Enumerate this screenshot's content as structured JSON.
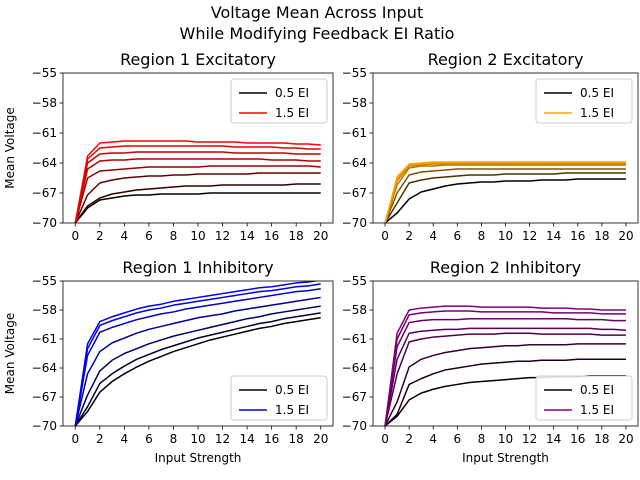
{
  "suptitle_line1": "Voltage Mean Across Input",
  "suptitle_line2": "While Modifying Feedback EI Ratio",
  "chart_data": [
    {
      "type": "line",
      "title": "Region 1 Excitatory",
      "xlabel": "",
      "ylabel": "Mean Voltage",
      "xlim": [
        0,
        20
      ],
      "ylim": [
        -70,
        -55
      ],
      "xticks": [
        0,
        2,
        4,
        6,
        8,
        10,
        12,
        14,
        16,
        18,
        20
      ],
      "yticks": [
        -70,
        -67,
        -64,
        -61,
        -58,
        -55
      ],
      "legend": [
        "0.5 EI",
        "1.5 EI"
      ],
      "legend_position": "upper right",
      "low_color": "#000000",
      "high_color": "#ff0000",
      "x": [
        0,
        1,
        2,
        3,
        4,
        5,
        6,
        7,
        8,
        9,
        10,
        11,
        12,
        13,
        14,
        15,
        16,
        17,
        18,
        19,
        20
      ],
      "series": [
        {
          "ei": 0.5,
          "values": [
            -70,
            -68.5,
            -67.7,
            -67.5,
            -67.3,
            -67.2,
            -67.2,
            -67.1,
            -67.1,
            -67.1,
            -67.1,
            -67.0,
            -67.0,
            -67.0,
            -67.0,
            -67.0,
            -67.0,
            -67.0,
            -67.0,
            -67.0,
            -67.0
          ]
        },
        {
          "ei": 0.7,
          "values": [
            -70,
            -68.3,
            -67.5,
            -67.1,
            -66.9,
            -66.7,
            -66.6,
            -66.5,
            -66.4,
            -66.3,
            -66.3,
            -66.3,
            -66.2,
            -66.2,
            -66.2,
            -66.2,
            -66.2,
            -66.2,
            -66.1,
            -66.1,
            -66.1
          ]
        },
        {
          "ei": 0.9,
          "values": [
            -70,
            -67.2,
            -66.0,
            -65.7,
            -65.5,
            -65.4,
            -65.3,
            -65.3,
            -65.2,
            -65.2,
            -65.1,
            -65.1,
            -65.1,
            -65.1,
            -65.1,
            -65.0,
            -65.0,
            -65.0,
            -65.0,
            -65.0,
            -65.0
          ]
        },
        {
          "ei": 1.1,
          "values": [
            -70,
            -65.5,
            -64.8,
            -64.7,
            -64.6,
            -64.5,
            -64.4,
            -64.4,
            -64.4,
            -64.4,
            -64.4,
            -64.3,
            -64.3,
            -64.3,
            -64.3,
            -64.3,
            -64.3,
            -64.3,
            -64.3,
            -64.3,
            -64.4
          ]
        },
        {
          "ei": 1.2,
          "values": [
            -70,
            -64.6,
            -63.8,
            -63.7,
            -63.7,
            -63.6,
            -63.6,
            -63.6,
            -63.6,
            -63.6,
            -63.6,
            -63.6,
            -63.6,
            -63.6,
            -63.6,
            -63.6,
            -63.7,
            -63.7,
            -63.7,
            -63.8,
            -63.8
          ]
        },
        {
          "ei": 1.3,
          "values": [
            -70,
            -64.0,
            -63.1,
            -63.0,
            -63.0,
            -62.9,
            -62.9,
            -62.9,
            -62.9,
            -62.9,
            -62.9,
            -62.9,
            -62.9,
            -63.0,
            -63.0,
            -63.0,
            -63.0,
            -63.0,
            -63.1,
            -63.1,
            -63.1
          ]
        },
        {
          "ei": 1.4,
          "values": [
            -70,
            -63.6,
            -62.5,
            -62.4,
            -62.3,
            -62.3,
            -62.3,
            -62.3,
            -62.3,
            -62.3,
            -62.3,
            -62.3,
            -62.3,
            -62.4,
            -62.4,
            -62.4,
            -62.4,
            -62.5,
            -62.5,
            -62.6,
            -62.6
          ]
        },
        {
          "ei": 1.5,
          "values": [
            -70,
            -63.3,
            -62.0,
            -61.9,
            -61.8,
            -61.8,
            -61.8,
            -61.8,
            -61.8,
            -61.8,
            -61.9,
            -61.9,
            -61.9,
            -61.9,
            -62.0,
            -62.0,
            -62.0,
            -62.0,
            -62.1,
            -62.1,
            -62.2
          ]
        }
      ]
    },
    {
      "type": "line",
      "title": "Region 2 Excitatory",
      "xlabel": "",
      "ylabel": "",
      "xlim": [
        0,
        20
      ],
      "ylim": [
        -70,
        -55
      ],
      "xticks": [
        0,
        2,
        4,
        6,
        8,
        10,
        12,
        14,
        16,
        18,
        20
      ],
      "yticks": [
        -70,
        -67,
        -64,
        -61,
        -58,
        -55
      ],
      "legend": [
        "0.5 EI",
        "1.5 EI"
      ],
      "legend_position": "upper right",
      "low_color": "#000000",
      "high_color": "#ffa500",
      "x": [
        0,
        1,
        2,
        3,
        4,
        5,
        6,
        7,
        8,
        9,
        10,
        11,
        12,
        13,
        14,
        15,
        16,
        17,
        18,
        19,
        20
      ],
      "series": [
        {
          "ei": 0.5,
          "values": [
            -70,
            -69.0,
            -67.6,
            -66.9,
            -66.6,
            -66.3,
            -66.1,
            -66.0,
            -65.9,
            -65.9,
            -65.8,
            -65.8,
            -65.8,
            -65.7,
            -65.7,
            -65.7,
            -65.6,
            -65.6,
            -65.6,
            -65.6,
            -65.6
          ]
        },
        {
          "ei": 0.8,
          "values": [
            -70,
            -68.0,
            -66.0,
            -65.7,
            -65.5,
            -65.4,
            -65.3,
            -65.2,
            -65.2,
            -65.2,
            -65.1,
            -65.1,
            -65.1,
            -65.1,
            -65.1,
            -65.0,
            -65.0,
            -65.0,
            -65.0,
            -65.0,
            -65.0
          ]
        },
        {
          "ei": 1.0,
          "values": [
            -70,
            -67.0,
            -65.2,
            -64.9,
            -64.8,
            -64.7,
            -64.6,
            -64.6,
            -64.6,
            -64.6,
            -64.6,
            -64.6,
            -64.6,
            -64.6,
            -64.6,
            -64.6,
            -64.6,
            -64.6,
            -64.6,
            -64.6,
            -64.6
          ]
        },
        {
          "ei": 1.2,
          "values": [
            -70,
            -66.2,
            -64.5,
            -64.3,
            -64.3,
            -64.2,
            -64.2,
            -64.2,
            -64.2,
            -64.2,
            -64.2,
            -64.2,
            -64.2,
            -64.2,
            -64.2,
            -64.2,
            -64.2,
            -64.2,
            -64.2,
            -64.2,
            -64.2
          ]
        },
        {
          "ei": 1.3,
          "values": [
            -70,
            -65.8,
            -64.3,
            -64.2,
            -64.1,
            -64.1,
            -64.1,
            -64.1,
            -64.1,
            -64.1,
            -64.1,
            -64.1,
            -64.1,
            -64.1,
            -64.1,
            -64.1,
            -64.1,
            -64.1,
            -64.1,
            -64.1,
            -64.1
          ]
        },
        {
          "ei": 1.4,
          "values": [
            -70,
            -65.6,
            -64.2,
            -64.1,
            -64.0,
            -64.0,
            -64.0,
            -64.0,
            -64.0,
            -64.0,
            -64.0,
            -64.0,
            -64.0,
            -64.0,
            -64.0,
            -64.0,
            -64.0,
            -64.0,
            -64.0,
            -64.0,
            -64.0
          ]
        },
        {
          "ei": 1.5,
          "values": [
            -70,
            -65.4,
            -64.1,
            -64.0,
            -63.9,
            -63.9,
            -63.9,
            -63.9,
            -63.9,
            -63.9,
            -63.9,
            -63.9,
            -63.9,
            -63.9,
            -63.9,
            -63.9,
            -63.9,
            -63.9,
            -63.9,
            -63.9,
            -63.9
          ]
        }
      ]
    },
    {
      "type": "line",
      "title": "Region 1 Inhibitory",
      "xlabel": "Input Strength",
      "ylabel": "Mean Voltage",
      "xlim": [
        0,
        20
      ],
      "ylim": [
        -70,
        -55
      ],
      "xticks": [
        0,
        2,
        4,
        6,
        8,
        10,
        12,
        14,
        16,
        18,
        20
      ],
      "yticks": [
        -70,
        -67,
        -64,
        -61,
        -58,
        -55
      ],
      "legend": [
        "0.5 EI",
        "1.5 EI"
      ],
      "legend_position": "lower right",
      "low_color": "#000000",
      "high_color": "#0000ff",
      "x": [
        0,
        1,
        2,
        3,
        4,
        5,
        6,
        7,
        8,
        9,
        10,
        11,
        12,
        13,
        14,
        15,
        16,
        17,
        18,
        19,
        20
      ],
      "series": [
        {
          "ei": 0.5,
          "values": [
            -70,
            -68.5,
            -66.5,
            -65.4,
            -64.6,
            -63.9,
            -63.3,
            -62.8,
            -62.3,
            -61.9,
            -61.5,
            -61.1,
            -60.8,
            -60.5,
            -60.2,
            -59.9,
            -59.7,
            -59.4,
            -59.2,
            -59.0,
            -58.8
          ]
        },
        {
          "ei": 0.7,
          "values": [
            -70,
            -68.0,
            -65.6,
            -64.6,
            -63.8,
            -63.1,
            -62.6,
            -62.1,
            -61.7,
            -61.3,
            -60.9,
            -60.6,
            -60.3,
            -60.0,
            -59.7,
            -59.4,
            -59.2,
            -58.9,
            -58.7,
            -58.5,
            -58.3
          ]
        },
        {
          "ei": 0.9,
          "values": [
            -70,
            -66.8,
            -64.3,
            -63.2,
            -62.5,
            -62.0,
            -61.5,
            -61.1,
            -60.7,
            -60.4,
            -60.1,
            -59.8,
            -59.5,
            -59.2,
            -58.9,
            -58.7,
            -58.4,
            -58.2,
            -58.0,
            -57.8,
            -57.6
          ]
        },
        {
          "ei": 1.1,
          "values": [
            -70,
            -64.6,
            -62.3,
            -61.4,
            -60.9,
            -60.4,
            -60.0,
            -59.7,
            -59.4,
            -59.1,
            -58.8,
            -58.6,
            -58.4,
            -58.1,
            -57.9,
            -57.7,
            -57.5,
            -57.3,
            -57.1,
            -56.9,
            -56.7
          ]
        },
        {
          "ei": 1.3,
          "values": [
            -70,
            -62.7,
            -60.3,
            -59.8,
            -59.4,
            -59.0,
            -58.7,
            -58.4,
            -58.2,
            -57.9,
            -57.7,
            -57.5,
            -57.3,
            -57.1,
            -56.9,
            -56.7,
            -56.5,
            -56.3,
            -56.1,
            -56.0,
            -55.8
          ]
        },
        {
          "ei": 1.4,
          "values": [
            -70,
            -62.0,
            -59.6,
            -59.1,
            -58.7,
            -58.3,
            -58.0,
            -57.8,
            -57.5,
            -57.3,
            -57.1,
            -56.9,
            -56.7,
            -56.5,
            -56.3,
            -56.1,
            -56.0,
            -55.8,
            -55.6,
            -55.5,
            -55.3
          ]
        },
        {
          "ei": 1.5,
          "values": [
            -70,
            -61.5,
            -59.2,
            -58.7,
            -58.3,
            -57.9,
            -57.6,
            -57.4,
            -57.1,
            -56.9,
            -56.7,
            -56.5,
            -56.3,
            -56.1,
            -55.9,
            -55.7,
            -55.6,
            -55.4,
            -55.2,
            -55.1,
            -54.9
          ]
        }
      ]
    },
    {
      "type": "line",
      "title": "Region 2 Inhibitory",
      "xlabel": "Input Strength",
      "ylabel": "",
      "xlim": [
        0,
        20
      ],
      "ylim": [
        -70,
        -55
      ],
      "xticks": [
        0,
        2,
        4,
        6,
        8,
        10,
        12,
        14,
        16,
        18,
        20
      ],
      "yticks": [
        -70,
        -67,
        -64,
        -61,
        -58,
        -55
      ],
      "legend": [
        "0.5 EI",
        "1.5 EI"
      ],
      "legend_position": "lower right",
      "low_color": "#000000",
      "high_color": "#800080",
      "x": [
        0,
        1,
        2,
        3,
        4,
        5,
        6,
        7,
        8,
        9,
        10,
        11,
        12,
        13,
        14,
        15,
        16,
        17,
        18,
        19,
        20
      ],
      "series": [
        {
          "ei": 0.5,
          "values": [
            -70,
            -69.0,
            -67.3,
            -66.6,
            -66.2,
            -65.9,
            -65.7,
            -65.5,
            -65.4,
            -65.3,
            -65.2,
            -65.1,
            -65.0,
            -65.0,
            -64.9,
            -64.9,
            -64.9,
            -64.8,
            -64.8,
            -64.8,
            -64.8
          ]
        },
        {
          "ei": 0.7,
          "values": [
            -70,
            -68.8,
            -65.7,
            -65.1,
            -64.6,
            -64.2,
            -64.0,
            -63.8,
            -63.6,
            -63.5,
            -63.4,
            -63.3,
            -63.3,
            -63.2,
            -63.2,
            -63.2,
            -63.1,
            -63.1,
            -63.1,
            -63.1,
            -63.1
          ]
        },
        {
          "ei": 0.9,
          "values": [
            -70,
            -67.5,
            -63.9,
            -63.1,
            -62.7,
            -62.4,
            -62.2,
            -62.0,
            -61.9,
            -61.8,
            -61.7,
            -61.7,
            -61.6,
            -61.6,
            -61.6,
            -61.6,
            -61.5,
            -61.5,
            -61.5,
            -61.5,
            -61.5
          ]
        },
        {
          "ei": 1.1,
          "values": [
            -70,
            -64.6,
            -61.3,
            -61.0,
            -60.8,
            -60.7,
            -60.6,
            -60.5,
            -60.5,
            -60.5,
            -60.4,
            -60.4,
            -60.4,
            -60.5,
            -60.5,
            -60.5,
            -60.5,
            -60.5,
            -60.6,
            -60.6,
            -60.6
          ]
        },
        {
          "ei": 1.2,
          "values": [
            -70,
            -63.1,
            -60.4,
            -60.2,
            -60.1,
            -60.0,
            -60.0,
            -59.9,
            -59.9,
            -59.9,
            -59.9,
            -59.9,
            -59.9,
            -59.9,
            -59.9,
            -59.9,
            -59.9,
            -59.9,
            -60.0,
            -60.0,
            -60.1
          ]
        },
        {
          "ei": 1.3,
          "values": [
            -70,
            -61.8,
            -59.3,
            -59.1,
            -59.0,
            -59.0,
            -59.0,
            -58.9,
            -58.9,
            -58.9,
            -58.9,
            -58.9,
            -58.9,
            -58.9,
            -58.9,
            -58.9,
            -59.0,
            -59.0,
            -59.0,
            -59.1,
            -59.1
          ]
        },
        {
          "ei": 1.4,
          "values": [
            -70,
            -61.0,
            -58.5,
            -58.3,
            -58.2,
            -58.1,
            -58.1,
            -58.1,
            -58.2,
            -58.2,
            -58.2,
            -58.2,
            -58.2,
            -58.2,
            -58.3,
            -58.3,
            -58.3,
            -58.3,
            -58.4,
            -58.4,
            -58.4
          ]
        },
        {
          "ei": 1.5,
          "values": [
            -70,
            -60.4,
            -58.0,
            -57.8,
            -57.7,
            -57.6,
            -57.6,
            -57.6,
            -57.7,
            -57.7,
            -57.7,
            -57.7,
            -57.7,
            -57.8,
            -57.8,
            -57.8,
            -57.9,
            -57.9,
            -58.0,
            -58.0,
            -58.0
          ]
        }
      ]
    }
  ]
}
